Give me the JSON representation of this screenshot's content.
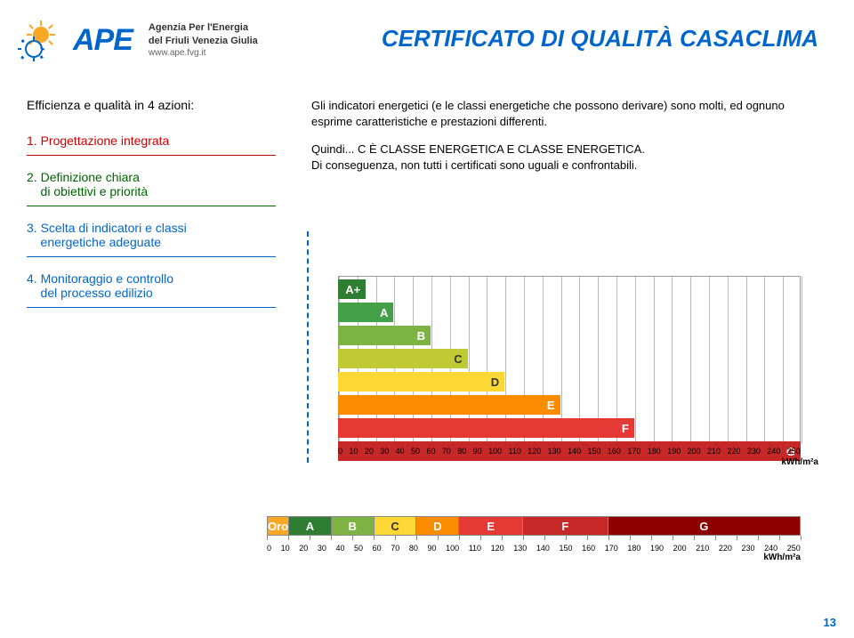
{
  "header": {
    "logo_main": "APE",
    "logo_line1": "Agenzia Per l'Energia",
    "logo_line2": "del Friuli Venezia Giulia",
    "logo_url": "www.ape.fvg.it"
  },
  "title": "CERTIFICATO DI QUALITÀ CASACLIMA",
  "title_color": "#0066cc",
  "subtitle": "Efficienza e qualità in 4 azioni:",
  "actions": [
    {
      "num": "1.",
      "text": "Progettazione integrata",
      "color": "#cc0000"
    },
    {
      "num": "2.",
      "text": "Definizione chiara\ndi obiettivi e priorità",
      "color": "#006600"
    },
    {
      "num": "3.",
      "text": "Scelta di indicatori e classi\nenergetiche adeguate",
      "color": "#0066cc"
    },
    {
      "num": "4.",
      "text": "Monitoraggio e controllo\ndel processo edilizio",
      "color": "#0066cc"
    }
  ],
  "para1": "Gli indicatori energetici (e le classi energetiche che possono derivare) sono molti, ed ognuno esprime caratteristiche e prestazioni differenti.",
  "para2a": "Quindi... C È CLASSE ENERGETICA E CLASSE ENERGETICA.",
  "para2b": "Di conseguenza, non tutti i certificati sono uguali e confrontabili.",
  "chart1": {
    "unit": "kWh/m²a",
    "xmin": 0,
    "xmax": 250,
    "xtick_step": 10,
    "ticks": [
      "0",
      "10",
      "20",
      "30",
      "40",
      "50",
      "60",
      "70",
      "80",
      "90",
      "100",
      "110",
      "120",
      "130",
      "140",
      "150",
      "160",
      "170",
      "180",
      "190",
      "200",
      "210",
      "220",
      "230",
      "240",
      "250"
    ],
    "bars": [
      {
        "label": "A+",
        "value": 15,
        "color": "#2e7d32",
        "text_color": "#ffffff"
      },
      {
        "label": "A",
        "value": 30,
        "color": "#43a047",
        "text_color": "#ffffff"
      },
      {
        "label": "B",
        "value": 50,
        "color": "#7cb342",
        "text_color": "#ffffff"
      },
      {
        "label": "C",
        "value": 70,
        "color": "#c0ca33",
        "text_color": "#333333"
      },
      {
        "label": "D",
        "value": 90,
        "color": "#fdd835",
        "text_color": "#333333"
      },
      {
        "label": "E",
        "value": 120,
        "color": "#fb8c00",
        "text_color": "#ffffff"
      },
      {
        "label": "F",
        "value": 160,
        "color": "#e53935",
        "text_color": "#ffffff"
      },
      {
        "label": "G",
        "value": 250,
        "color": "#c62828",
        "text_color": "#ffffff"
      }
    ]
  },
  "chart2": {
    "unit": "kWh/m²a",
    "xmin": 0,
    "xmax": 250,
    "ticks": [
      "0",
      "10",
      "20",
      "30",
      "40",
      "50",
      "60",
      "70",
      "80",
      "90",
      "100",
      "110",
      "120",
      "130",
      "140",
      "150",
      "160",
      "170",
      "180",
      "190",
      "200",
      "210",
      "220",
      "230",
      "240",
      "250"
    ],
    "segments": [
      {
        "label": "Oro",
        "from": 0,
        "to": 10,
        "color": "#f9a825",
        "text_color": "#ffffff"
      },
      {
        "label": "A",
        "from": 10,
        "to": 30,
        "color": "#2e7d32",
        "text_color": "#ffffff"
      },
      {
        "label": "B",
        "from": 30,
        "to": 50,
        "color": "#7cb342",
        "text_color": "#ffffff"
      },
      {
        "label": "C",
        "from": 50,
        "to": 70,
        "color": "#fdd835",
        "text_color": "#333333"
      },
      {
        "label": "D",
        "from": 70,
        "to": 90,
        "color": "#fb8c00",
        "text_color": "#ffffff"
      },
      {
        "label": "E",
        "from": 90,
        "to": 120,
        "color": "#e53935",
        "text_color": "#ffffff"
      },
      {
        "label": "F",
        "from": 120,
        "to": 160,
        "color": "#c62828",
        "text_color": "#ffffff"
      },
      {
        "label": "G",
        "from": 160,
        "to": 250,
        "color": "#8e0000",
        "text_color": "#ffffff"
      }
    ]
  },
  "page_number": "13",
  "page_number_color": "#0066cc",
  "logo_gear_color": "#0066cc",
  "logo_sun_color": "#f9a825"
}
